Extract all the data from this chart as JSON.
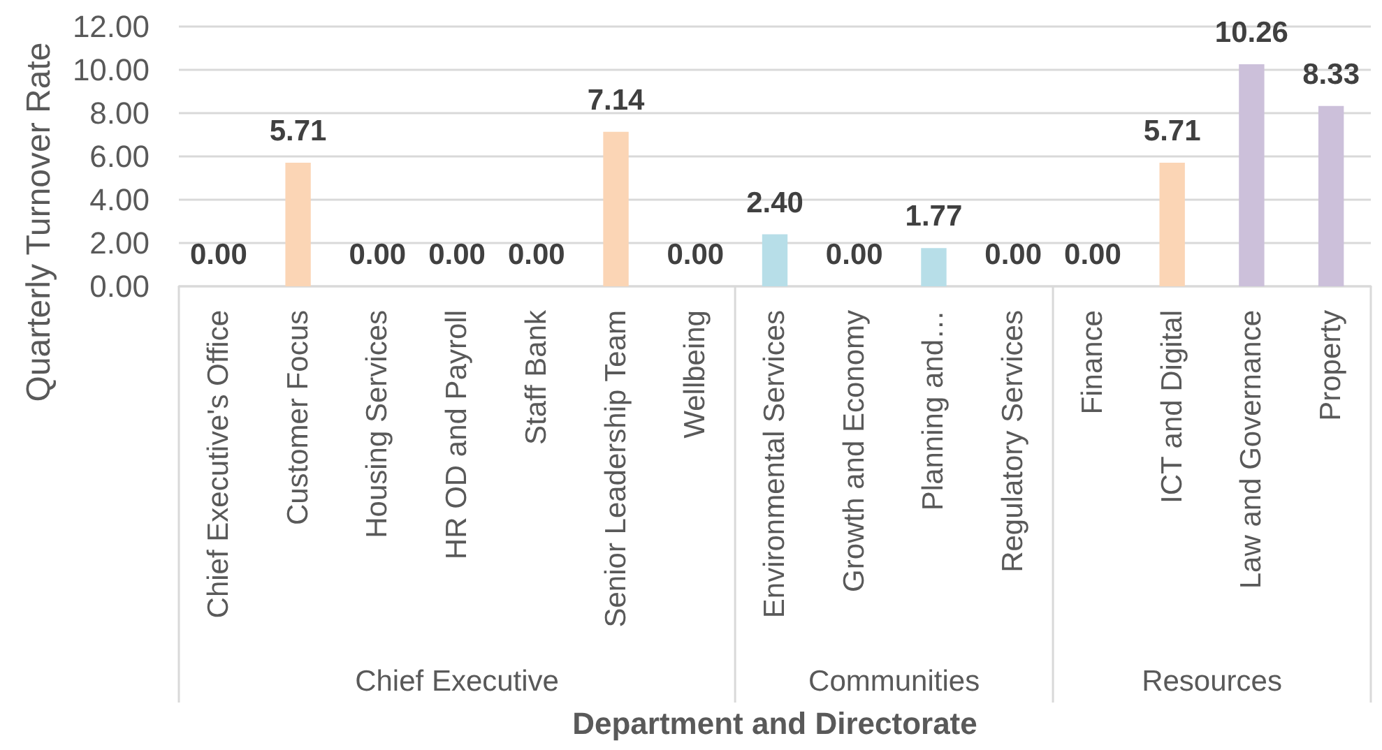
{
  "chart_data": {
    "type": "bar",
    "xlabel": "Department and Directorate",
    "ylabel": "Quarterly Turnover Rate",
    "categories": [
      "Chief Executive's Office",
      "Customer Focus",
      "Housing Services",
      "HR OD and Payroll",
      "Staff Bank",
      "Senior Leadership Team",
      "Wellbeing",
      "Environmental Services",
      "Growth and Economy",
      "Planning and…",
      "Regulatory Services",
      "Finance",
      "ICT and Digital",
      "Law and Governance",
      "Property"
    ],
    "values": [
      0,
      5.71,
      0,
      0,
      0,
      7.14,
      0,
      2.4,
      0,
      1.77,
      0,
      0,
      5.71,
      10.26,
      8.33
    ],
    "colors": [
      "#b7dee8",
      "#fbd5b5",
      "#b7dee8",
      "#b7dee8",
      "#b7dee8",
      "#fbd5b5",
      "#b7dee8",
      "#b7dee8",
      "#b7dee8",
      "#b7dee8",
      "#b7dee8",
      "#b7dee8",
      "#fbd5b5",
      "#ccc0da",
      "#ccc0da"
    ],
    "value_labels": [
      "0.00",
      "5.71",
      "0.00",
      "0.00",
      "0.00",
      "7.14",
      "0.00",
      "2.40",
      "0.00",
      "1.77",
      "0.00",
      "0.00",
      "5.71",
      "10.26",
      "8.33"
    ],
    "ylim": [
      0,
      12
    ],
    "yticks": [
      {
        "value": 0,
        "label": "0.00"
      },
      {
        "value": 2,
        "label": "2.00"
      },
      {
        "value": 4,
        "label": "4.00"
      },
      {
        "value": 6,
        "label": "6.00"
      },
      {
        "value": 8,
        "label": "8.00"
      },
      {
        "value": 10,
        "label": "10.00"
      },
      {
        "value": 12,
        "label": "12.00"
      }
    ],
    "grid": "y",
    "annotations": [
      "Chief Executive",
      "Communities",
      "Resources"
    ]
  }
}
